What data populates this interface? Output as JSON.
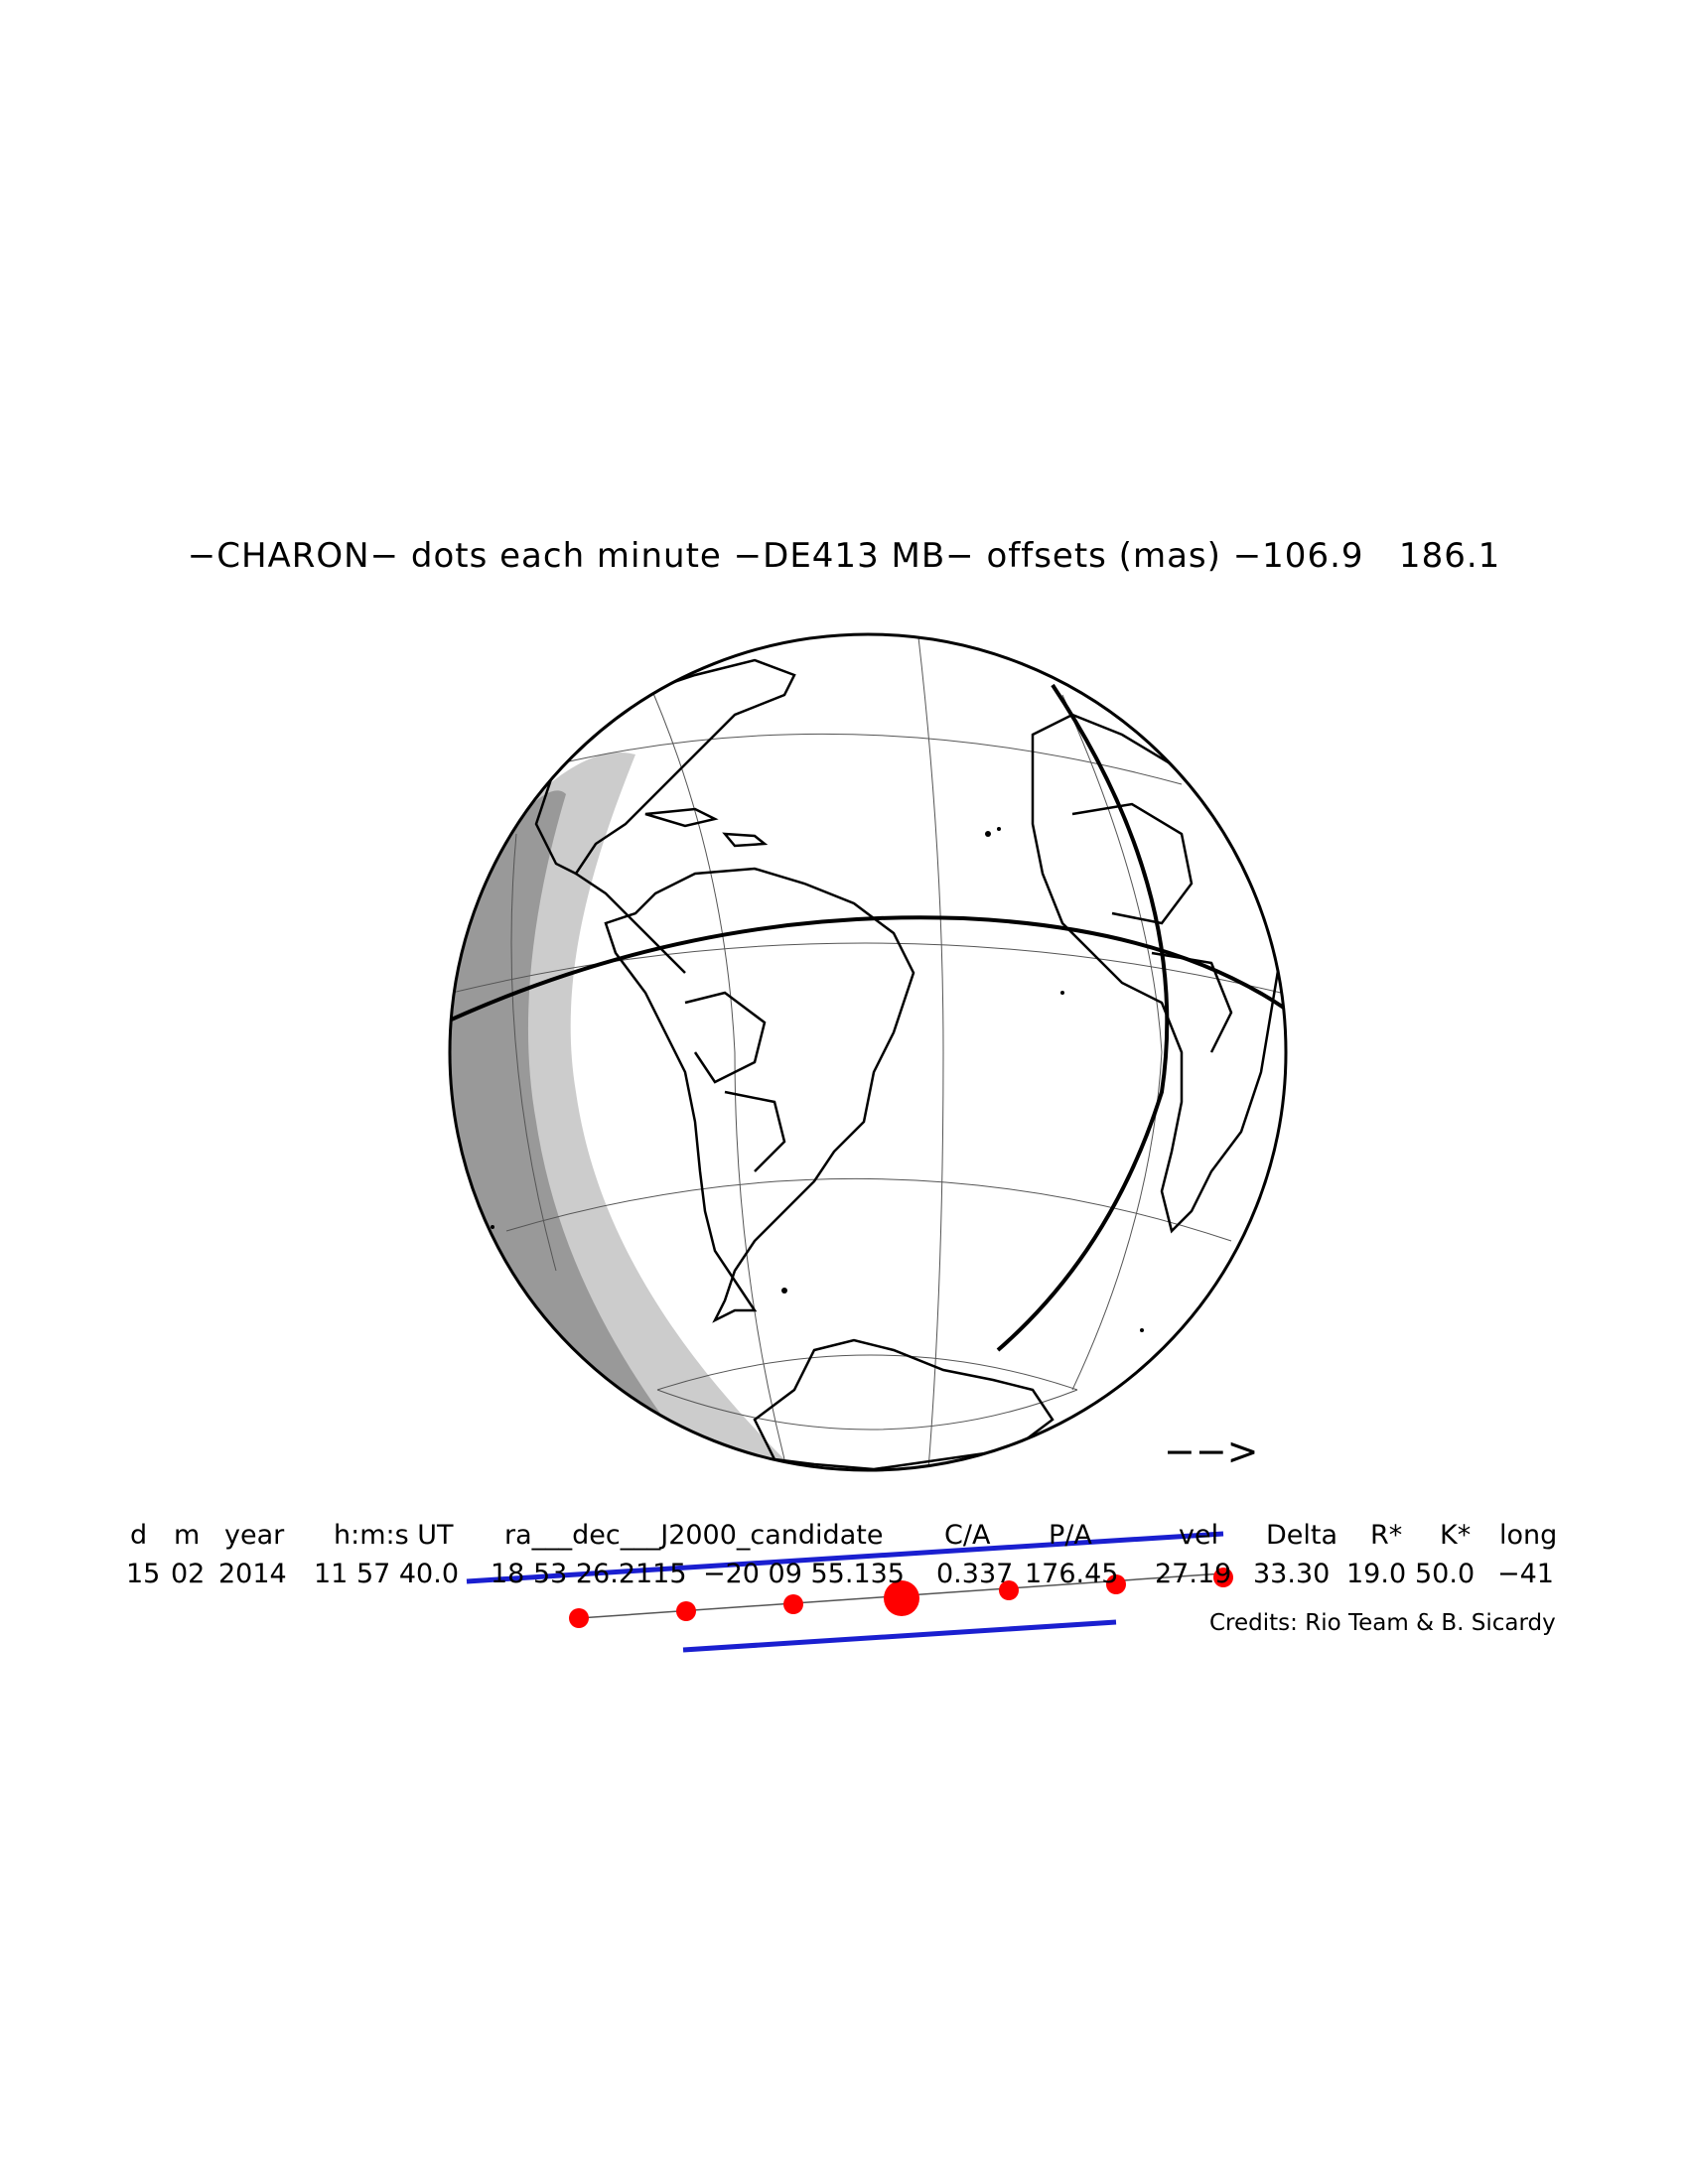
{
  "title": "−CHARON− dots each minute −DE413 MB− offsets (mas) −106.9   186.1",
  "direction_arrow": "−−>",
  "header_cols": [
    {
      "label": "d"
    },
    {
      "label": "m"
    },
    {
      "label": "year"
    },
    {
      "label": "h:m:s UT"
    },
    {
      "label": "ra___dec___J2000_candidate"
    },
    {
      "label": "C/A"
    },
    {
      "label": "P/A"
    },
    {
      "label": "vel"
    },
    {
      "label": "Delta"
    },
    {
      "label": "R*"
    },
    {
      "label": "K*"
    },
    {
      "label": "long"
    }
  ],
  "value_cols": [
    {
      "value": "15"
    },
    {
      "value": "02"
    },
    {
      "value": "2014"
    },
    {
      "value": "11 57 40.0"
    },
    {
      "value": "18 53 26.2115"
    },
    {
      "value": "−20 09 55.135"
    },
    {
      "value": "0.337"
    },
    {
      "value": "176.45"
    },
    {
      "value": "27.19"
    },
    {
      "value": "33.30"
    },
    {
      "value": "19.0"
    },
    {
      "value": "50.0"
    },
    {
      "value": "−41"
    }
  ],
  "credits": "Credits: Rio Team & B. Sicardy",
  "colors": {
    "shadow_path": "#1a1fd0",
    "dots": "#ff0000",
    "night": "#cccccc",
    "twilight": "#999999"
  }
}
